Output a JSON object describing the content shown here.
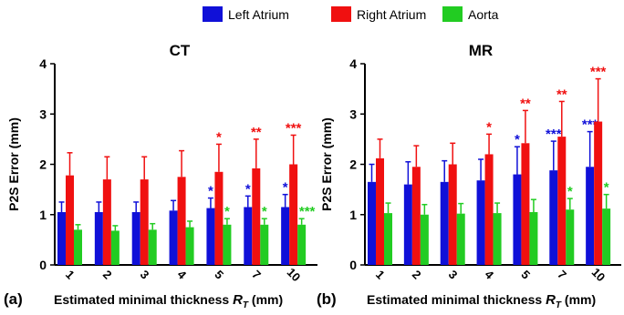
{
  "legend": {
    "items": [
      {
        "label": "Left Atrium",
        "color": "#1010d8"
      },
      {
        "label": "Right Atrium",
        "color": "#f01010"
      },
      {
        "label": "Aorta",
        "color": "#22cc22"
      }
    ]
  },
  "chart_data": [
    {
      "type": "bar",
      "panel_label": "(a)",
      "title": "CT",
      "ylabel": "P2S Error (mm)",
      "xlabel": "Estimated minimal thickness ",
      "xlabel_symbol": "R",
      "xlabel_sub": "T",
      "xlabel_unit": " (mm)",
      "categories": [
        "1",
        "2",
        "3",
        "4",
        "5",
        "7",
        "10"
      ],
      "ylim": [
        0,
        4
      ],
      "yticks": [
        "0",
        "1",
        "2",
        "3",
        "4"
      ],
      "series": [
        {
          "name": "Left Atrium",
          "color": "#1010d8",
          "values": [
            1.05,
            1.05,
            1.05,
            1.08,
            1.13,
            1.15,
            1.15
          ],
          "errors": [
            0.2,
            0.2,
            0.2,
            0.2,
            0.2,
            0.22,
            0.25
          ],
          "stars": [
            "",
            "",
            "",
            "",
            "*",
            "*",
            "*"
          ]
        },
        {
          "name": "Right Atrium",
          "color": "#f01010",
          "values": [
            1.78,
            1.7,
            1.7,
            1.75,
            1.85,
            1.92,
            2.0
          ],
          "errors": [
            0.45,
            0.45,
            0.45,
            0.52,
            0.55,
            0.58,
            0.58
          ],
          "stars": [
            "",
            "",
            "",
            "",
            "*",
            "**",
            "***"
          ]
        },
        {
          "name": "Aorta",
          "color": "#22cc22",
          "values": [
            0.7,
            0.68,
            0.7,
            0.75,
            0.8,
            0.8,
            0.8
          ],
          "errors": [
            0.1,
            0.1,
            0.12,
            0.12,
            0.12,
            0.12,
            0.12
          ],
          "stars": [
            "",
            "",
            "",
            "",
            "*",
            "*",
            "***"
          ]
        }
      ]
    },
    {
      "type": "bar",
      "panel_label": "(b)",
      "title": "MR",
      "ylabel": "P2S Error (mm)",
      "xlabel": "Estimated minimal thickness ",
      "xlabel_symbol": "R",
      "xlabel_sub": "T",
      "xlabel_unit": " (mm)",
      "categories": [
        "1",
        "2",
        "3",
        "4",
        "5",
        "7",
        "10"
      ],
      "ylim": [
        0,
        4
      ],
      "yticks": [
        "0",
        "1",
        "2",
        "3",
        "4"
      ],
      "series": [
        {
          "name": "Left Atrium",
          "color": "#1010d8",
          "values": [
            1.65,
            1.6,
            1.65,
            1.68,
            1.8,
            1.88,
            1.95
          ],
          "errors": [
            0.35,
            0.45,
            0.42,
            0.42,
            0.55,
            0.58,
            0.7
          ],
          "stars": [
            "",
            "",
            "",
            "",
            "*",
            "***",
            "***"
          ]
        },
        {
          "name": "Right Atrium",
          "color": "#f01010",
          "values": [
            2.12,
            1.95,
            2.0,
            2.2,
            2.42,
            2.55,
            2.85
          ],
          "errors": [
            0.38,
            0.42,
            0.42,
            0.4,
            0.65,
            0.7,
            0.85
          ],
          "stars": [
            "",
            "",
            "",
            "*",
            "**",
            "**",
            "***"
          ]
        },
        {
          "name": "Aorta",
          "color": "#22cc22",
          "values": [
            1.03,
            1.0,
            1.02,
            1.03,
            1.05,
            1.1,
            1.12
          ],
          "errors": [
            0.2,
            0.2,
            0.2,
            0.2,
            0.25,
            0.22,
            0.28
          ],
          "stars": [
            "",
            "",
            "",
            "",
            "",
            "*",
            "*"
          ]
        }
      ]
    }
  ]
}
